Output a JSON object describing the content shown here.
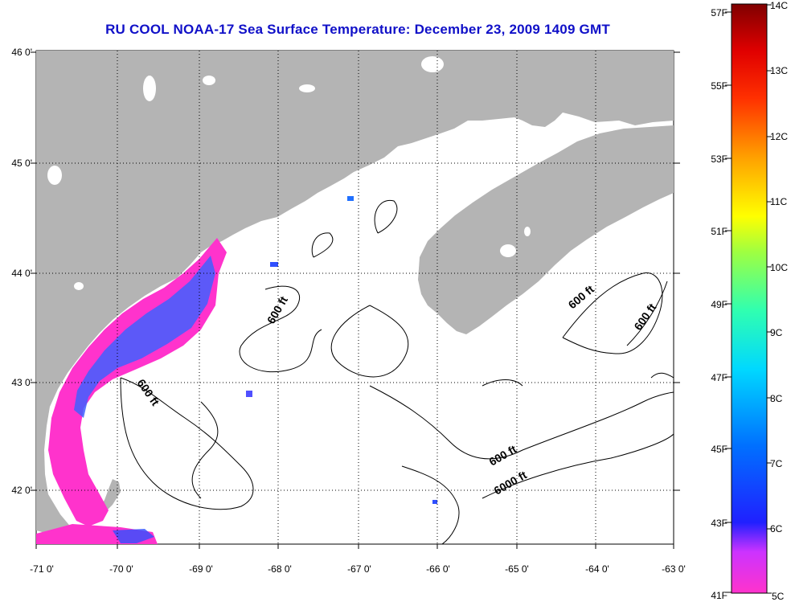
{
  "title": "RU COOL  NOAA-17  Sea Surface Temperature:  December 23, 2009 1409 GMT",
  "map": {
    "lon_ticks": [
      "-71 0'",
      "-70 0'",
      "-69 0'",
      "-68 0'",
      "-67 0'",
      "-66 0'",
      "-65 0'",
      "-64 0'",
      "-63 0'"
    ],
    "lat_ticks": [
      "46 0'",
      "45 0'",
      "44 0'",
      "43 0'",
      "42 0'"
    ],
    "contour_labels": [
      "600 ft",
      "600 ft",
      "600 ft",
      "600 ft",
      "600 ft",
      "6000 ft"
    ],
    "colors": {
      "land": "#b4b4b4",
      "water": "#ffffff",
      "contour": "#000000",
      "grid": "#000000"
    }
  },
  "colorbar": {
    "fahrenheit": [
      "57F",
      "55F",
      "53F",
      "51F",
      "49F",
      "47F",
      "45F",
      "43F",
      "41F"
    ],
    "celsius": [
      "14C",
      "13C",
      "12C",
      "11C",
      "10C",
      "9C",
      "8C",
      "7C",
      "6C",
      "5C"
    ],
    "gradient": [
      "#800000",
      "#ff0000",
      "#ff8000",
      "#ffff00",
      "#80ff80",
      "#00ffff",
      "#0080ff",
      "#0000ff",
      "#8000ff",
      "#ff00ff"
    ]
  }
}
